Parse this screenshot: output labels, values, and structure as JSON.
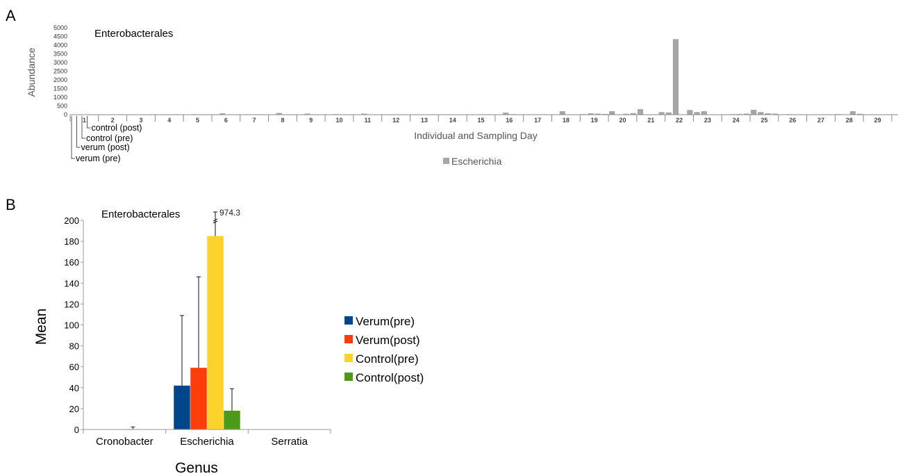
{
  "chart_data": [
    {
      "panel": "A",
      "type": "bar",
      "title": "Enterobacterales",
      "xlabel": "Individual and Sampling Day",
      "ylabel": "Abundance",
      "ylim": [
        0,
        5000
      ],
      "yticks": [
        "0",
        "500",
        "1000",
        "1500",
        "2000",
        "2500",
        "3000",
        "3500",
        "4000",
        "4500",
        "5000"
      ],
      "individuals": [
        "1",
        "2",
        "3",
        "4",
        "5",
        "6",
        "7",
        "8",
        "9",
        "10",
        "11",
        "12",
        "13",
        "14",
        "15",
        "16",
        "17",
        "18",
        "19",
        "20",
        "21",
        "22",
        "23",
        "24",
        "25",
        "26",
        "27",
        "28",
        "29"
      ],
      "samples_per_individual": [
        "verum (pre)",
        "verum (post)",
        "control (pre)",
        "control (post)"
      ],
      "series": [
        {
          "name": "Escherichia",
          "color": "#a6a6a6",
          "values": [
            [
              0,
              0,
              0,
              0
            ],
            [
              0,
              0,
              0,
              0
            ],
            [
              0,
              0,
              0,
              0
            ],
            [
              0,
              0,
              20,
              0
            ],
            [
              0,
              30,
              0,
              0
            ],
            [
              0,
              80,
              0,
              0
            ],
            [
              0,
              20,
              0,
              0
            ],
            [
              0,
              100,
              20,
              0
            ],
            [
              0,
              60,
              20,
              0
            ],
            [
              0,
              30,
              0,
              0
            ],
            [
              0,
              60,
              0,
              0
            ],
            [
              0,
              0,
              0,
              0
            ],
            [
              0,
              0,
              0,
              20
            ],
            [
              0,
              0,
              0,
              0
            ],
            [
              0,
              20,
              0,
              0
            ],
            [
              0,
              120,
              30,
              0
            ],
            [
              0,
              0,
              0,
              0
            ],
            [
              0,
              200,
              0,
              0
            ],
            [
              30,
              80,
              60,
              40
            ],
            [
              200,
              0,
              50,
              90
            ],
            [
              320,
              0,
              0,
              150
            ],
            [
              130,
              4350,
              0,
              270
            ],
            [
              150,
              200,
              0,
              0
            ],
            [
              0,
              30,
              40,
              60
            ],
            [
              280,
              150,
              80,
              60
            ],
            [
              0,
              30,
              0,
              0
            ],
            [
              0,
              0,
              0,
              0
            ],
            [
              30,
              0,
              200,
              50
            ],
            [
              0,
              0,
              0,
              0
            ]
          ]
        }
      ],
      "legend": "bottom"
    },
    {
      "panel": "B",
      "type": "bar",
      "title": "Enterobacterales",
      "xlabel": "Genus",
      "ylabel": "Mean",
      "ylim": [
        0,
        200
      ],
      "yticks": [
        "0",
        "20",
        "40",
        "60",
        "80",
        "100",
        "120",
        "140",
        "160",
        "180",
        "200"
      ],
      "categories": [
        "Cronobacter",
        "Escherichia",
        "Serratia"
      ],
      "series": [
        {
          "name": "Verum(pre)",
          "color": "#00468b",
          "values": [
            0,
            42,
            0
          ],
          "error": [
            0,
            67,
            0
          ]
        },
        {
          "name": "Verum(post)",
          "color": "#ff3c0b",
          "values": [
            0,
            59,
            0
          ],
          "error": [
            0,
            87,
            0
          ]
        },
        {
          "name": "Control(pre)",
          "color": "#fdd22b",
          "values": [
            0.5,
            185,
            0
          ],
          "error": [
            2,
            789.3,
            0
          ]
        },
        {
          "name": "Control(post)",
          "color": "#4d9a1b",
          "values": [
            0,
            18,
            0
          ],
          "error": [
            0,
            21,
            0
          ]
        }
      ],
      "annotation": "974.3",
      "legend": "right"
    }
  ]
}
